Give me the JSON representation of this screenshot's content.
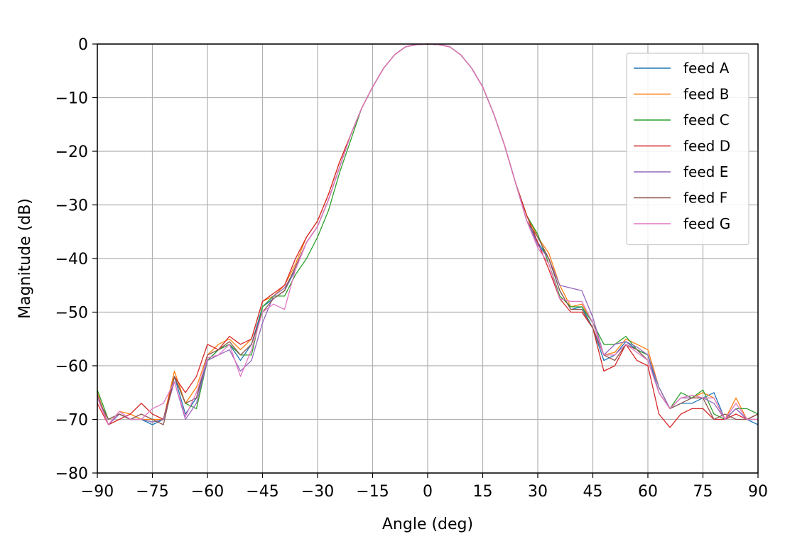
{
  "chart_data": {
    "type": "line",
    "title": "",
    "xlabel": "Angle (deg)",
    "ylabel": "Magnitude (dB)",
    "xlim": [
      -90,
      90
    ],
    "ylim": [
      -80,
      0
    ],
    "xticks": [
      -90,
      -75,
      -60,
      -45,
      -30,
      -15,
      0,
      15,
      30,
      45,
      60,
      75,
      90
    ],
    "yticks": [
      0,
      -10,
      -20,
      -30,
      -40,
      -50,
      -60,
      -70,
      -80
    ],
    "xtick_labels": [
      "−90",
      "−75",
      "−60",
      "−45",
      "−30",
      "−15",
      "0",
      "15",
      "30",
      "45",
      "60",
      "75",
      "90"
    ],
    "ytick_labels": [
      "0",
      "−10",
      "−20",
      "−30",
      "−40",
      "−50",
      "−60",
      "−70",
      "−80"
    ],
    "grid": true,
    "legend_position": "top-right",
    "x": [
      -90,
      -87,
      -84,
      -81,
      -78,
      -75,
      -72,
      -69,
      -66,
      -63,
      -60,
      -57,
      -54,
      -51,
      -48,
      -45,
      -42,
      -39,
      -36,
      -33,
      -30,
      -27,
      -24,
      -21,
      -18,
      -15,
      -12,
      -9,
      -6,
      -3,
      0,
      3,
      6,
      9,
      12,
      15,
      18,
      21,
      24,
      27,
      30,
      33,
      36,
      39,
      42,
      45,
      48,
      51,
      54,
      57,
      60,
      63,
      66,
      69,
      72,
      75,
      78,
      81,
      84,
      87,
      90
    ],
    "series": [
      {
        "name": "feed A",
        "color": "#1f77b4",
        "values": [
          -65,
          -71,
          -69,
          -70,
          -70,
          -71,
          -70,
          -62,
          -69,
          -66,
          -59,
          -57,
          -56,
          -59,
          -56,
          -49,
          -47.5,
          -46,
          -42,
          -37,
          -34,
          -29,
          -23,
          -17,
          -12,
          -8,
          -4.5,
          -2,
          -0.5,
          -0.1,
          0,
          -0.1,
          -0.5,
          -2,
          -4.5,
          -8,
          -13,
          -19,
          -26,
          -33,
          -37,
          -40,
          -46,
          -49.5,
          -49,
          -53,
          -59,
          -58,
          -55.5,
          -57,
          -58,
          -65,
          -68,
          -67,
          -67,
          -66,
          -65,
          -70,
          -68,
          -70,
          -71
        ]
      },
      {
        "name": "feed B",
        "color": "#ff7f0e",
        "values": [
          -65,
          -71,
          -68.5,
          -69,
          -70,
          -70,
          -70,
          -61,
          -67,
          -64,
          -58,
          -56,
          -55,
          -57,
          -55,
          -48,
          -47,
          -45,
          -41,
          -36,
          -33,
          -28,
          -22,
          -17,
          -12,
          -8,
          -4.5,
          -2,
          -0.5,
          -0.1,
          0,
          -0.1,
          -0.5,
          -2,
          -4.5,
          -8,
          -13,
          -19,
          -26,
          -32,
          -36,
          -39,
          -45,
          -49,
          -48.5,
          -52,
          -58,
          -57.5,
          -55,
          -56,
          -57,
          -64,
          -68,
          -66,
          -66,
          -65,
          -66,
          -70,
          -66,
          -70,
          -70
        ]
      },
      {
        "name": "feed C",
        "color": "#2ca02c",
        "values": [
          -64.5,
          -70,
          -69,
          -70,
          -70,
          -70.5,
          -70,
          -62,
          -67,
          -68,
          -59,
          -57,
          -56,
          -58,
          -58,
          -49,
          -47,
          -47,
          -43,
          -40,
          -36,
          -31,
          -24,
          -18,
          -12,
          -8,
          -4.5,
          -2,
          -0.5,
          -0.1,
          0,
          -0.1,
          -0.5,
          -2,
          -4.5,
          -8,
          -13,
          -19,
          -26,
          -32,
          -35.5,
          -41,
          -47,
          -49,
          -49,
          -52,
          -56,
          -56,
          -54.5,
          -57,
          -58,
          -64,
          -68,
          -65,
          -66,
          -64.5,
          -69,
          -70,
          -68,
          -68,
          -69
        ]
      },
      {
        "name": "feed D",
        "color": "#d62728",
        "values": [
          -67,
          -71,
          -70,
          -69,
          -67,
          -69,
          -70,
          -62,
          -65,
          -62,
          -56,
          -57,
          -54.5,
          -56,
          -55,
          -48,
          -46.5,
          -45,
          -40,
          -36,
          -33,
          -28,
          -22,
          -17,
          -12,
          -8,
          -4.5,
          -2,
          -0.5,
          -0.1,
          0,
          -0.1,
          -0.5,
          -2,
          -4.5,
          -8,
          -13,
          -19,
          -26,
          -32,
          -37,
          -42,
          -47.5,
          -50,
          -50,
          -53,
          -61,
          -60,
          -56,
          -59,
          -60,
          -69,
          -71.5,
          -69,
          -68,
          -68,
          -70,
          -70,
          -69,
          -70,
          -69
        ]
      },
      {
        "name": "feed E",
        "color": "#9467bd",
        "values": [
          -65.5,
          -71,
          -69,
          -70,
          -70,
          -70.5,
          -70,
          -63,
          -70,
          -67,
          -59,
          -58,
          -57,
          -61,
          -59,
          -52,
          -47,
          -45.5,
          -42,
          -37,
          -34,
          -29,
          -23,
          -17,
          -12,
          -8,
          -4.5,
          -2,
          -0.5,
          -0.1,
          0,
          -0.1,
          -0.5,
          -2,
          -4.5,
          -8,
          -13,
          -19,
          -26,
          -33,
          -37.5,
          -40,
          -45,
          -45.5,
          -46,
          -51,
          -58,
          -56,
          -55.5,
          -56.5,
          -58,
          -64,
          -68,
          -66,
          -66,
          -66,
          -67,
          -70,
          -68,
          -70,
          -70
        ]
      },
      {
        "name": "feed F",
        "color": "#8c564b",
        "values": [
          -66,
          -70,
          -69,
          -70,
          -69,
          -70,
          -71,
          -62,
          -67,
          -66,
          -58,
          -57,
          -55.5,
          -58,
          -56,
          -50,
          -47.5,
          -46,
          -41.5,
          -37,
          -34,
          -29,
          -23,
          -17,
          -12,
          -8,
          -4.5,
          -2,
          -0.5,
          -0.1,
          0,
          -0.1,
          -0.5,
          -2,
          -4.5,
          -8,
          -13,
          -19,
          -26,
          -33,
          -36,
          -40,
          -46,
          -49.5,
          -49.5,
          -53,
          -58,
          -59,
          -56,
          -57,
          -59,
          -65,
          -68,
          -67,
          -66,
          -66,
          -70,
          -69,
          -70,
          -70,
          -69
        ]
      },
      {
        "name": "feed G",
        "color": "#e377c2",
        "values": [
          -66,
          -71,
          -68.5,
          -70,
          -70,
          -68,
          -67,
          -63,
          -69.5,
          -65,
          -58.5,
          -58,
          -56,
          -62,
          -57,
          -50,
          -48.5,
          -49.5,
          -42,
          -37,
          -34,
          -29,
          -23,
          -17,
          -12,
          -8,
          -4.5,
          -2,
          -0.5,
          -0.1,
          0,
          -0.1,
          -0.5,
          -2,
          -4.5,
          -8,
          -13,
          -19,
          -26,
          -33,
          -38,
          -41,
          -47.5,
          -48,
          -48,
          -52,
          -58,
          -58,
          -56,
          -57.5,
          -59,
          -65,
          -68,
          -66,
          -65.5,
          -66,
          -66,
          -70,
          -67,
          -70,
          -70
        ]
      }
    ]
  }
}
